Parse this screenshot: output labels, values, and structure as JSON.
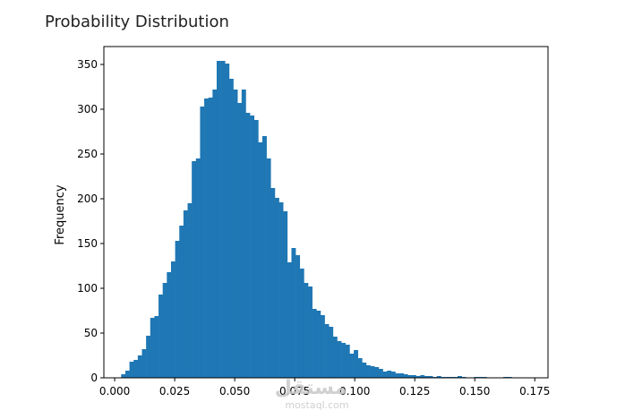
{
  "chart_data": {
    "type": "bar",
    "title": "Probability Distribution",
    "xlabel": "",
    "ylabel": "Frequency",
    "xlim": [
      -0.0045,
      0.1805
    ],
    "ylim": [
      0,
      370
    ],
    "xticks": [
      0.0,
      0.025,
      0.05,
      0.075,
      0.1,
      0.125,
      0.15,
      0.175
    ],
    "xtick_labels": [
      "0.000",
      "0.025",
      "0.050",
      "0.075",
      "0.100",
      "0.125",
      "0.150",
      "0.175"
    ],
    "yticks": [
      0,
      50,
      100,
      150,
      200,
      250,
      300,
      350
    ],
    "ytick_labels": [
      "0",
      "50",
      "100",
      "150",
      "200",
      "250",
      "300",
      "350"
    ],
    "bin_start": 0.0027,
    "bin_width": 0.00173,
    "color": "#1f77b4",
    "grid": false,
    "values": [
      4,
      8,
      18,
      20,
      25,
      32,
      47,
      67,
      69,
      93,
      106,
      118,
      130,
      153,
      170,
      187,
      195,
      242,
      245,
      303,
      312,
      313,
      322,
      354,
      354,
      351,
      334,
      322,
      307,
      322,
      296,
      293,
      288,
      263,
      270,
      245,
      212,
      201,
      196,
      186,
      129,
      145,
      137,
      122,
      106,
      102,
      77,
      75,
      70,
      60,
      57,
      46,
      41,
      39,
      37,
      27,
      31,
      22,
      17,
      14,
      13,
      12,
      10,
      7,
      8,
      7,
      5,
      5,
      4,
      3,
      3,
      2,
      3,
      2,
      2,
      1,
      2,
      1,
      1,
      1,
      1,
      2,
      1,
      0,
      0,
      1,
      1,
      1,
      0,
      0,
      0,
      0,
      1,
      1,
      0,
      0,
      0,
      0,
      0,
      0
    ]
  },
  "watermark": {
    "logo_text": "مستقل",
    "url_text": "mostaql.com"
  }
}
